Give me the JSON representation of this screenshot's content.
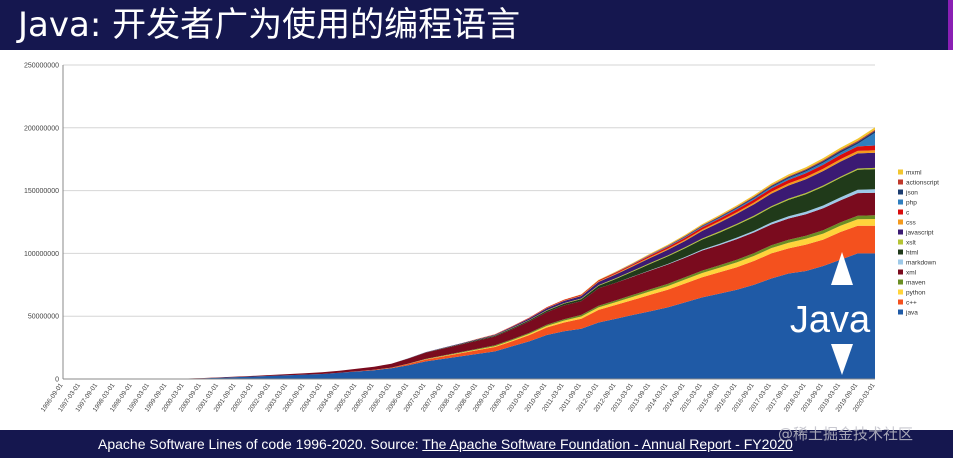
{
  "slide": {
    "title": "Java: 开发者广为使用的编程语言",
    "footer_prefix": "Apache Software Lines of code 1996-2020. Source: ",
    "footer_link": "The Apache Software Foundation - Annual Report - FY2020",
    "watermark": "@稀土掘金技术社区",
    "java_label": "Java"
  },
  "colors": {
    "header_bg": "#15174f",
    "java": "#1f5aa6",
    "c++": "#f4511e"
  },
  "chart_data": {
    "type": "area",
    "stacked": true,
    "title": "",
    "xlabel": "",
    "ylabel": "",
    "ylim": [
      0,
      250000000
    ],
    "y_ticks": [
      "0",
      "50000000",
      "100000000",
      "150000000",
      "200000000",
      "250000000"
    ],
    "grid": true,
    "legend_position": "right",
    "x_labels": [
      "1996-09-01",
      "1997-03-01",
      "1997-09-01",
      "1998-03-01",
      "1998-09-01",
      "1999-03-01",
      "1999-09-01",
      "2000-03-01",
      "2000-09-01",
      "2001-03-01",
      "2001-09-01",
      "2002-03-01",
      "2002-09-01",
      "2003-03-01",
      "2003-09-01",
      "2004-03-01",
      "2004-09-01",
      "2005-03-01",
      "2005-09-01",
      "2006-03-01",
      "2006-09-01",
      "2007-03-01",
      "2007-09-01",
      "2008-03-01",
      "2008-09-01",
      "2009-03-01",
      "2009-09-01",
      "2010-03-01",
      "2010-09-01",
      "2011-03-01",
      "2011-09-01",
      "2012-03-01",
      "2012-09-01",
      "2013-03-01",
      "2013-09-01",
      "2014-03-01",
      "2014-09-01",
      "2015-03-01",
      "2015-09-01",
      "2016-03-01",
      "2016-09-01",
      "2017-03-01",
      "2017-09-01",
      "2018-03-01",
      "2018-09-01",
      "2019-03-01",
      "2019-09-01",
      "2020-03-01"
    ],
    "series": [
      {
        "name": "java",
        "color": "#1f5aa6",
        "values": [
          0,
          0,
          0,
          0,
          0,
          0,
          0,
          200000,
          500000,
          1000000,
          1500000,
          2000000,
          2500000,
          3000000,
          3500000,
          4000000,
          5000000,
          6000000,
          7000000,
          8500000,
          11000000,
          14000000,
          16000000,
          18000000,
          20000000,
          22000000,
          26000000,
          30000000,
          35000000,
          38000000,
          40000000,
          45000000,
          48000000,
          51000000,
          54000000,
          57000000,
          61000000,
          65000000,
          68000000,
          71000000,
          75000000,
          80000000,
          84000000,
          86000000,
          90000000,
          95000000,
          100000000,
          100000000
        ]
      },
      {
        "name": "c++",
        "color": "#f4511e",
        "values": [
          0,
          0,
          0,
          0,
          0,
          0,
          0,
          0,
          0,
          0,
          0,
          0,
          0,
          0,
          0,
          0,
          0,
          200000,
          300000,
          500000,
          1000000,
          1500000,
          2000000,
          2500000,
          3000000,
          3500000,
          4000000,
          5000000,
          6000000,
          7000000,
          8000000,
          10000000,
          11000000,
          12000000,
          13000000,
          14000000,
          15000000,
          16000000,
          17000000,
          18000000,
          19000000,
          20000000,
          20000000,
          21000000,
          21000000,
          22000000,
          22000000,
          22000000
        ]
      },
      {
        "name": "python",
        "color": "#ffd43b",
        "values": [
          0,
          0,
          0,
          0,
          0,
          0,
          0,
          0,
          0,
          0,
          0,
          0,
          0,
          0,
          0,
          0,
          0,
          0,
          0,
          0,
          100000,
          200000,
          300000,
          400000,
          500000,
          600000,
          800000,
          1000000,
          1200000,
          1500000,
          1800000,
          2000000,
          2200000,
          2500000,
          2800000,
          3000000,
          3200000,
          3400000,
          3600000,
          3800000,
          4000000,
          4200000,
          4400000,
          4600000,
          4800000,
          5000000,
          5200000,
          5400000
        ]
      },
      {
        "name": "maven",
        "color": "#6b8e23",
        "values": [
          0,
          0,
          0,
          0,
          0,
          0,
          0,
          0,
          0,
          0,
          0,
          0,
          0,
          0,
          0,
          0,
          0,
          0,
          0,
          100000,
          200000,
          300000,
          400000,
          500000,
          600000,
          700000,
          800000,
          900000,
          1000000,
          1100000,
          1200000,
          1300000,
          1400000,
          1500000,
          1600000,
          1700000,
          1800000,
          1900000,
          2000000,
          2100000,
          2200000,
          2300000,
          2400000,
          2500000,
          2600000,
          2700000,
          2800000,
          2900000
        ]
      },
      {
        "name": "xml",
        "color": "#7a0b1e",
        "values": [
          0,
          0,
          0,
          0,
          0,
          0,
          0,
          100000,
          200000,
          300000,
          400000,
          500000,
          700000,
          900000,
          1100000,
          1300000,
          1500000,
          2000000,
          2500000,
          3000000,
          4000000,
          5000000,
          5500000,
          6000000,
          6500000,
          7000000,
          8000000,
          9000000,
          10000000,
          11000000,
          11000000,
          14000000,
          14000000,
          14500000,
          15000000,
          15500000,
          15500000,
          16000000,
          16000000,
          16500000,
          16500000,
          16500000,
          17000000,
          17000000,
          17500000,
          17500000,
          18000000,
          18000000
        ]
      },
      {
        "name": "markdown",
        "color": "#9ec9e8",
        "values": [
          0,
          0,
          0,
          0,
          0,
          0,
          0,
          0,
          0,
          0,
          0,
          0,
          0,
          0,
          0,
          0,
          0,
          0,
          0,
          0,
          0,
          0,
          0,
          0,
          0,
          0,
          0,
          0,
          0,
          0,
          0,
          0,
          100000,
          200000,
          300000,
          400000,
          600000,
          800000,
          1000000,
          1200000,
          1400000,
          1600000,
          1800000,
          2000000,
          2200000,
          2400000,
          2600000,
          2800000
        ]
      },
      {
        "name": "html",
        "color": "#203a1a",
        "values": [
          0,
          0,
          0,
          0,
          0,
          0,
          0,
          0,
          0,
          0,
          0,
          0,
          0,
          0,
          0,
          0,
          0,
          0,
          0,
          0,
          100000,
          200000,
          300000,
          400000,
          500000,
          600000,
          800000,
          1000000,
          1200000,
          1400000,
          1600000,
          2000000,
          3000000,
          4000000,
          5000000,
          6000000,
          7000000,
          8000000,
          9000000,
          10000000,
          11000000,
          12000000,
          13000000,
          14000000,
          15000000,
          15500000,
          16000000,
          16000000
        ]
      },
      {
        "name": "xslt",
        "color": "#b5c334",
        "values": [
          0,
          0,
          0,
          0,
          0,
          0,
          0,
          0,
          0,
          0,
          0,
          0,
          0,
          0,
          0,
          0,
          0,
          0,
          0,
          0,
          0,
          0,
          100000,
          100000,
          200000,
          200000,
          300000,
          300000,
          400000,
          400000,
          500000,
          500000,
          600000,
          600000,
          700000,
          700000,
          800000,
          800000,
          900000,
          900000,
          1000000,
          1000000,
          1000000,
          1000000,
          1000000,
          1000000,
          1000000,
          1000000
        ]
      },
      {
        "name": "javascript",
        "color": "#3b1a73",
        "values": [
          0,
          0,
          0,
          0,
          0,
          0,
          0,
          0,
          0,
          0,
          0,
          0,
          0,
          0,
          0,
          0,
          0,
          0,
          0,
          0,
          100000,
          200000,
          300000,
          400000,
          500000,
          700000,
          900000,
          1200000,
          1500000,
          1800000,
          2000000,
          2500000,
          3000000,
          3500000,
          4000000,
          4500000,
          5000000,
          6000000,
          7000000,
          8000000,
          9000000,
          10000000,
          10500000,
          11000000,
          11500000,
          12000000,
          12000000,
          12000000
        ]
      },
      {
        "name": "css",
        "color": "#f39a1e",
        "values": [
          0,
          0,
          0,
          0,
          0,
          0,
          0,
          0,
          0,
          0,
          0,
          0,
          0,
          0,
          0,
          0,
          0,
          0,
          0,
          0,
          0,
          0,
          0,
          0,
          100000,
          100000,
          200000,
          200000,
          300000,
          300000,
          400000,
          500000,
          600000,
          700000,
          800000,
          900000,
          1000000,
          1100000,
          1200000,
          1300000,
          1400000,
          1500000,
          1600000,
          1700000,
          1800000,
          1900000,
          2000000,
          2000000
        ]
      },
      {
        "name": "c",
        "color": "#d90d0d",
        "values": [
          0,
          0,
          0,
          0,
          0,
          0,
          0,
          0,
          0,
          0,
          0,
          0,
          0,
          0,
          0,
          0,
          0,
          0,
          0,
          0,
          0,
          0,
          0,
          0,
          100000,
          200000,
          300000,
          400000,
          500000,
          600000,
          700000,
          800000,
          900000,
          1000000,
          1200000,
          1400000,
          1600000,
          1800000,
          2000000,
          2200000,
          2400000,
          2600000,
          2800000,
          3000000,
          3200000,
          3400000,
          3600000,
          3800000
        ]
      },
      {
        "name": "php",
        "color": "#2e7ebf",
        "values": [
          0,
          0,
          0,
          0,
          0,
          0,
          0,
          0,
          0,
          0,
          0,
          0,
          0,
          0,
          0,
          0,
          0,
          0,
          0,
          0,
          0,
          0,
          0,
          0,
          0,
          0,
          0,
          0,
          0,
          0,
          0,
          0,
          100000,
          200000,
          300000,
          400000,
          500000,
          600000,
          700000,
          800000,
          900000,
          1000000,
          1200000,
          1400000,
          1600000,
          1800000,
          2000000,
          10000000
        ]
      },
      {
        "name": "json",
        "color": "#1b3b6f",
        "values": [
          0,
          0,
          0,
          0,
          0,
          0,
          0,
          0,
          0,
          0,
          0,
          0,
          0,
          0,
          0,
          0,
          0,
          0,
          0,
          0,
          0,
          0,
          0,
          0,
          0,
          0,
          0,
          0,
          0,
          0,
          0,
          0,
          100000,
          200000,
          300000,
          400000,
          500000,
          600000,
          700000,
          800000,
          900000,
          1000000,
          1100000,
          1200000,
          1300000,
          1400000,
          1500000,
          1600000
        ]
      },
      {
        "name": "actionscript",
        "color": "#c0392b",
        "values": [
          0,
          0,
          0,
          0,
          0,
          0,
          0,
          0,
          0,
          0,
          0,
          0,
          0,
          0,
          0,
          0,
          0,
          0,
          0,
          0,
          0,
          0,
          0,
          0,
          0,
          0,
          0,
          0,
          0,
          0,
          100000,
          100000,
          200000,
          200000,
          300000,
          300000,
          400000,
          400000,
          500000,
          500000,
          600000,
          600000,
          700000,
          700000,
          800000,
          800000,
          900000,
          900000
        ]
      },
      {
        "name": "mxml",
        "color": "#f2c62f",
        "values": [
          0,
          0,
          0,
          0,
          0,
          0,
          0,
          0,
          0,
          0,
          0,
          0,
          0,
          0,
          0,
          0,
          0,
          0,
          0,
          0,
          0,
          0,
          0,
          0,
          0,
          0,
          0,
          0,
          0,
          100000,
          200000,
          300000,
          400000,
          500000,
          600000,
          700000,
          800000,
          900000,
          1000000,
          1100000,
          1200000,
          1300000,
          1400000,
          1500000,
          1600000,
          1700000,
          1800000,
          1900000
        ]
      }
    ],
    "legend_order": [
      "mxml",
      "actionscript",
      "json",
      "php",
      "c",
      "css",
      "javascript",
      "xslt",
      "html",
      "markdown",
      "xml",
      "maven",
      "python",
      "c++",
      "java"
    ]
  }
}
